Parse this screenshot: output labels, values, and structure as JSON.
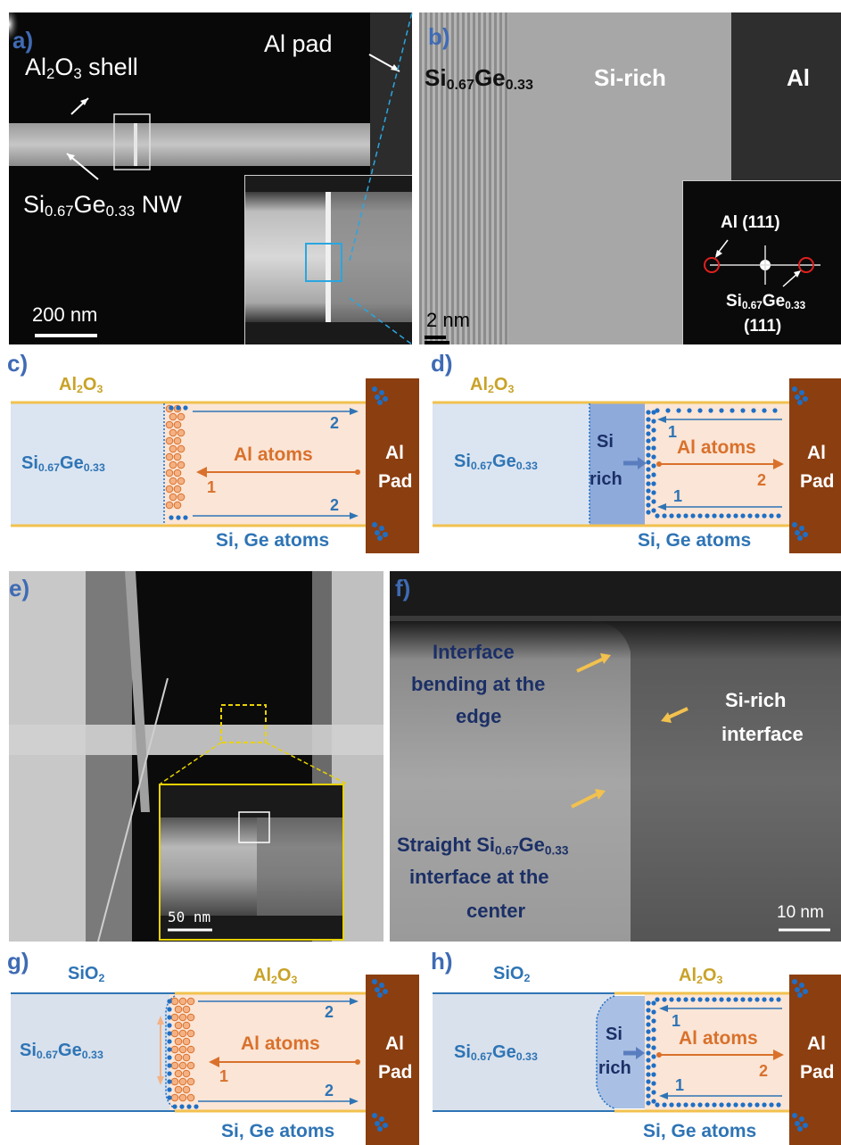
{
  "panels": {
    "a": {
      "label": "a)",
      "shell": [
        "Al",
        "2",
        "O",
        "3",
        " shell"
      ],
      "nw": [
        "Si",
        "0.67",
        "Ge",
        "0.33",
        " NW"
      ],
      "pad": "Al pad",
      "scale": "200 nm"
    },
    "b": {
      "label": "b)",
      "sige": [
        "Si",
        "0.67",
        "Ge",
        "0.33"
      ],
      "sirich": "Si-rich",
      "al": "Al",
      "scale": "2 nm",
      "fft_al": "Al (111)",
      "fft_sige": [
        "Si",
        "0.67",
        "Ge",
        "0.33"
      ],
      "fft_sige_idx": "(111)"
    },
    "c": {
      "label": "c)",
      "oxide": [
        "Al",
        "2",
        "O",
        "3"
      ],
      "sige": [
        "Si",
        "0.67",
        "Ge",
        "0.33"
      ],
      "al_atoms": "Al atoms",
      "num_1": "1",
      "num_2a": "2",
      "num_2b": "2",
      "pad1": "Al",
      "pad2": "Pad",
      "sige_atoms": "Si, Ge atoms"
    },
    "d": {
      "label": "d)",
      "oxide": [
        "Al",
        "2",
        "O",
        "3"
      ],
      "sige": [
        "Si",
        "0.67",
        "Ge",
        "0.33"
      ],
      "si": "Si",
      "rich": "rich",
      "al_atoms": "Al atoms",
      "num_1a": "1",
      "num_1b": "1",
      "num_2": "2",
      "pad1": "Al",
      "pad2": "Pad",
      "sige_atoms": "Si, Ge atoms"
    },
    "e": {
      "label": "e)",
      "scale": "50 nm"
    },
    "f": {
      "label": "f)",
      "bend1": "Interface",
      "bend2": "bending at the",
      "bend3": "edge",
      "straight1": [
        "Straight Si",
        "0.67",
        "Ge",
        "0.33"
      ],
      "straight2": "interface at the",
      "straight3": "center",
      "sirich1": "Si-rich",
      "sirich2": "interface",
      "scale": "10 nm"
    },
    "g": {
      "label": "g)",
      "sio2": [
        "SiO",
        "2"
      ],
      "oxide": [
        "Al",
        "2",
        "O",
        "3"
      ],
      "sige": [
        "Si",
        "0.67",
        "Ge",
        "0.33"
      ],
      "al_atoms": "Al atoms",
      "num_1": "1",
      "num_2a": "2",
      "num_2b": "2",
      "pad1": "Al",
      "pad2": "Pad",
      "sige_atoms": "Si, Ge atoms"
    },
    "h": {
      "label": "h)",
      "sio2": [
        "SiO",
        "2"
      ],
      "oxide": [
        "Al",
        "2",
        "O",
        "3"
      ],
      "sige": [
        "Si",
        "0.67",
        "Ge",
        "0.33"
      ],
      "si": "Si",
      "rich": "rich",
      "al_atoms": "Al atoms",
      "num_1a": "1",
      "num_1b": "1",
      "num_2": "2",
      "pad1": "Al",
      "pad2": "Pad",
      "sige_atoms": "Si, Ge atoms"
    }
  },
  "colors": {
    "label_blue": "#3f6bb4",
    "sige_fill": "#dbe5f1",
    "al_fill": "#fbe5d6",
    "pad": "#8b3e10",
    "oxide_line": "#f2c14e",
    "atom_blue": "#1f6fc5",
    "atom_orange": "#d9712c",
    "navy_text": "#1b2f66"
  }
}
